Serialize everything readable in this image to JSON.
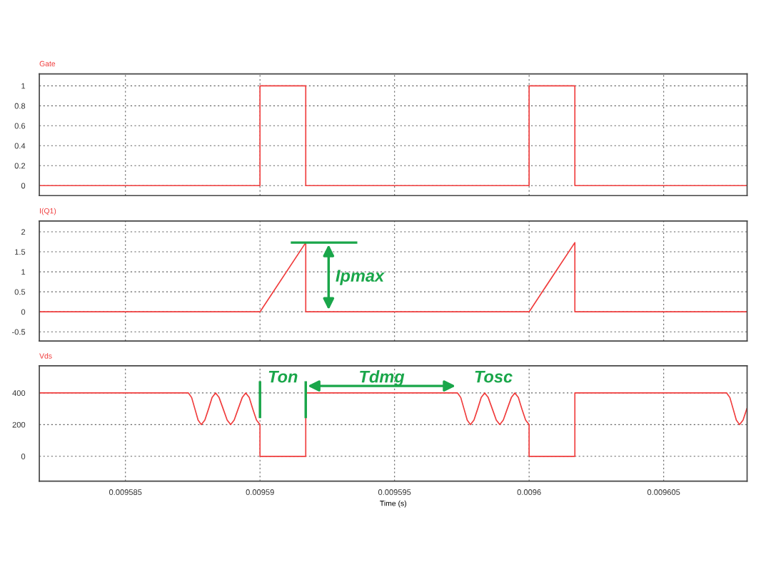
{
  "chart_data": [
    {
      "type": "line",
      "title": "Gate",
      "tick_labels": "y",
      "grid": true,
      "xlim": [
        0.0095818,
        0.0096081
      ],
      "xticks": [
        0.009585,
        0.00959,
        0.009595,
        0.0096,
        0.009605
      ],
      "ylim": [
        -0.1,
        1.12
      ],
      "yticks": [
        0,
        0.2,
        0.4,
        0.6,
        0.8,
        1
      ],
      "series": [
        {
          "color": "#f03c3c",
          "x": [
            0.0095818,
            0.00959,
            0.00959,
            0.0095917,
            0.0095917,
            0.0096,
            0.0096,
            0.0096017,
            0.0096017,
            0.0096081
          ],
          "values": [
            0,
            0,
            1,
            1,
            0,
            0,
            1,
            1,
            0,
            0
          ]
        }
      ]
    },
    {
      "type": "line",
      "title": "I(Q1)",
      "tick_labels": "y",
      "grid": true,
      "xlim": [
        0.0095818,
        0.0096081
      ],
      "xticks": [
        0.009585,
        0.00959,
        0.009595,
        0.0096,
        0.009605
      ],
      "ylim": [
        -0.73,
        2.27
      ],
      "yticks": [
        -0.5,
        0,
        0.5,
        1,
        1.5,
        2
      ],
      "annotations": [
        "Ipmax"
      ],
      "series": [
        {
          "color": "#f03c3c",
          "x": [
            0.0095818,
            0.00959,
            0.0095917,
            0.0095917,
            0.0096,
            0.0096017,
            0.0096017,
            0.0096081
          ],
          "values": [
            0,
            0,
            1.73,
            0,
            0,
            1.73,
            0,
            0
          ]
        }
      ]
    },
    {
      "type": "line",
      "title": "Vds",
      "xlabel": "Time (s)",
      "grid": true,
      "xlim": [
        0.0095818,
        0.0096081
      ],
      "xticks": [
        0.009585,
        0.00959,
        0.009595,
        0.0096,
        0.009605
      ],
      "ylim": [
        -157,
        571
      ],
      "yticks": [
        0,
        200,
        400
      ],
      "annotations": [
        {
          "text": "Ton",
          "x": 0.0095917,
          "y": 400
        },
        "Tdmg",
        "Tosc"
      ],
      "series": [
        {
          "color": "#f03c3c",
          "x": [
            0.0095818,
            0.00958734,
            0.00958746,
            0.00958758,
            0.0095877,
            0.00958782,
            0.00958795,
            0.00958809,
            0.00958822,
            0.00958835,
            0.00958848,
            0.00958863,
            0.00958878,
            0.00958891,
            0.00958904,
            0.00958919,
            0.00958934,
            0.00958947,
            0.0095896,
            0.00958973,
            0.00958987,
            0.00959,
            0.00959,
            0.0095917,
            0.0095917,
            0.00959734,
            0.00959746,
            0.00959758,
            0.0095977,
            0.00959782,
            0.00959795,
            0.00959809,
            0.00959822,
            0.00959835,
            0.00959848,
            0.00959863,
            0.00959878,
            0.00959891,
            0.00959904,
            0.00959919,
            0.00959934,
            0.00959947,
            0.0095996,
            0.00959973,
            0.00959987,
            0.0096,
            0.0096,
            0.0096017,
            0.0096017,
            0.00960734,
            0.00960746,
            0.00960758,
            0.0096077,
            0.00960782,
            0.00960795,
            0.00960809
          ],
          "values": [
            400,
            400,
            371,
            300,
            229,
            200,
            229,
            300,
            371,
            400,
            371,
            300,
            229,
            200,
            229,
            300,
            371,
            400,
            371,
            300,
            229,
            200,
            0,
            0,
            400,
            400,
            371,
            300,
            229,
            200,
            229,
            300,
            371,
            400,
            371,
            300,
            229,
            200,
            229,
            300,
            371,
            400,
            371,
            300,
            229,
            200,
            0,
            0,
            400,
            400,
            371,
            300,
            229,
            200,
            229,
            300
          ]
        }
      ]
    }
  ]
}
